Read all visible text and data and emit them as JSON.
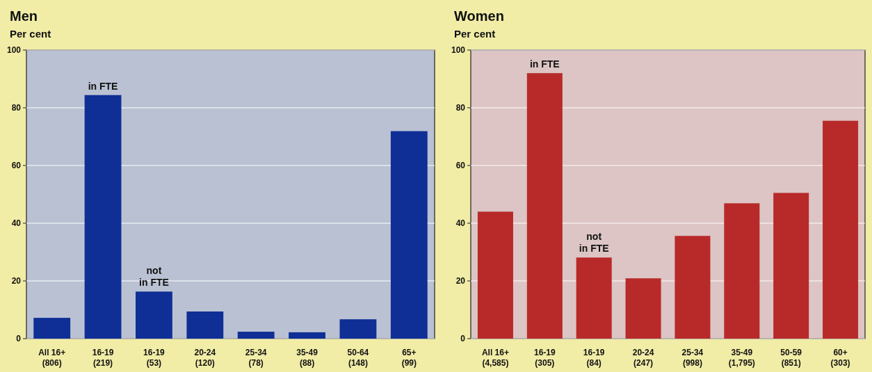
{
  "chart_data": [
    {
      "type": "bar",
      "title": "Men",
      "subtitle": "Per cent",
      "categories": [
        "All 16+\n(806)",
        "16-19\n(219)",
        "16-19\n(53)",
        "20-24\n(120)",
        "25-34\n(78)",
        "35-49\n(88)",
        "50-64\n(148)",
        "65+\n(99)"
      ],
      "values": [
        7.2,
        84.4,
        16.3,
        9.4,
        2.4,
        2.2,
        6.7,
        71.9
      ],
      "color": "#0f2f96",
      "ylim": [
        0,
        100
      ],
      "yticks": [
        0,
        20,
        40,
        60,
        80,
        100
      ],
      "grid": "y",
      "annotations": [
        {
          "text": "in FTE",
          "x": "16-19\n(219)",
          "y": 84.4
        },
        {
          "text": "not\nin FTE",
          "x": "16-19\n(53)",
          "y": 16.3
        }
      ]
    },
    {
      "type": "bar",
      "title": "Women",
      "subtitle": "Per cent",
      "categories": [
        "All 16+\n(4,585)",
        "16-19\n(305)",
        "16-19\n(84)",
        "20-24\n(247)",
        "25-34\n(998)",
        "35-49\n(1,795)",
        "50-59\n(851)",
        "60+\n(303)"
      ],
      "values": [
        44,
        92,
        28.1,
        20.9,
        35.6,
        46.9,
        50.5,
        75.5
      ],
      "color": "#b82a2a",
      "ylim": [
        0,
        100
      ],
      "yticks": [
        0,
        20,
        40,
        60,
        80,
        100
      ],
      "grid": "y",
      "annotations": [
        {
          "text": "in FTE",
          "x": "16-19\n(305)",
          "y": 92
        },
        {
          "text": "not\nin FTE",
          "x": "16-19\n(84)",
          "y": 28.1
        }
      ]
    }
  ]
}
